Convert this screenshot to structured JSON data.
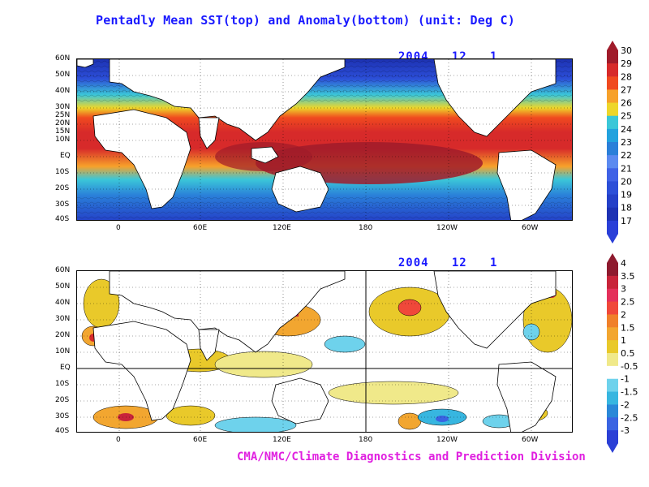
{
  "title": "Pentadly Mean SST(top) and Anomaly(bottom) (unit: Deg C)",
  "top_panel": {
    "date_year": "2004",
    "date_month": "12",
    "date_day": "1",
    "lat_labels": [
      "60N",
      "50N",
      "40N",
      "30N",
      "25N",
      "20N",
      "15N",
      "10N",
      "EQ",
      "10S",
      "20S",
      "30S",
      "40S"
    ],
    "lon_labels": [
      "0",
      "60E",
      "120E",
      "180",
      "120W",
      "60W"
    ],
    "colorbar": {
      "labels": [
        "30",
        "29",
        "28",
        "27",
        "26",
        "25",
        "24",
        "23",
        "22",
        "21",
        "20",
        "19",
        "18",
        "17"
      ],
      "colors": [
        "#a01b2a",
        "#d72a2a",
        "#f04a1f",
        "#f7a12a",
        "#eed62a",
        "#3bc7d8",
        "#22a2de",
        "#2a7fd9",
        "#5b8af0",
        "#3f62e6",
        "#2c4fd8",
        "#2440c8",
        "#1d32b4",
        "#2a3fd8"
      ]
    }
  },
  "bottom_panel": {
    "date_year": "2004",
    "date_month": "12",
    "date_day": "1",
    "lat_labels": [
      "60N",
      "50N",
      "40N",
      "30N",
      "20N",
      "10N",
      "EQ",
      "10S",
      "20S",
      "30S",
      "40S"
    ],
    "lon_labels": [
      "0",
      "60E",
      "120E",
      "180",
      "120W",
      "60W"
    ],
    "colorbar": {
      "labels": [
        "4",
        "3.5",
        "3",
        "2.5",
        "2",
        "1.5",
        "1",
        "0.5",
        "-0.5",
        "-1",
        "-1.5",
        "-2",
        "-2.5",
        "-3"
      ],
      "colors": [
        "#8e1a2e",
        "#c8243a",
        "#e4305a",
        "#f0483a",
        "#f0802a",
        "#f2a630",
        "#e9c92a",
        "#f0e98a",
        "#ffffff",
        "#6ed2ec",
        "#37b6e0",
        "#2a88d8",
        "#3a64e2",
        "#2b3fd6"
      ]
    }
  },
  "credit": "CMA/NMC/Climate Diagnostics and Prediction Division"
}
